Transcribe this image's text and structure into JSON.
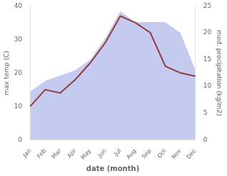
{
  "chart_data": {
    "type": "line",
    "categories": [
      "Jan",
      "Feb",
      "Mar",
      "Apr",
      "May",
      "Jun",
      "Jul",
      "Aug",
      "Sep",
      "Oct",
      "Nov",
      "Dec"
    ],
    "xlabel": "date (month)",
    "ylabel": "max temp (C)",
    "y2label": "med. precipitation (kg/m2)",
    "series": [
      {
        "type": "line",
        "color": "#943d3d",
        "values": [
          10,
          15,
          14,
          18,
          23,
          29,
          37,
          35,
          32,
          22,
          20,
          19
        ]
      },
      {
        "type": "area",
        "color": "#c5caf0",
        "axis": "y2",
        "values": [
          9,
          11,
          12,
          13,
          15,
          19,
          24,
          22,
          22,
          22,
          20,
          13
        ]
      }
    ],
    "ylim": [
      0,
      40
    ],
    "yticks": [
      0,
      10,
      20,
      30,
      40
    ],
    "y2lim": [
      0,
      25
    ],
    "y2ticks": [
      0,
      5,
      10,
      15,
      20,
      25
    ],
    "grid": false
  }
}
